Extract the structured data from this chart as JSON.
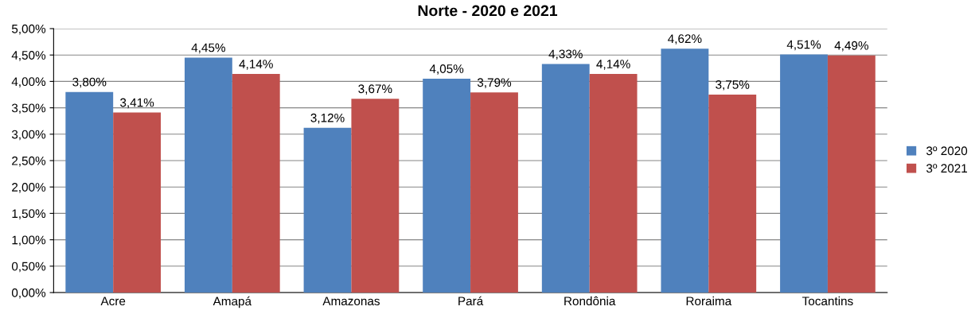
{
  "chart_data": {
    "type": "bar",
    "title": "Norte - 2020 e 2021",
    "categories": [
      "Acre",
      "Amapá",
      "Amazonas",
      "Pará",
      "Rondônia",
      "Roraima",
      "Tocantins"
    ],
    "series": [
      {
        "name": "3º 2020",
        "color": "#4f81bd",
        "values": [
          3.8,
          4.45,
          3.12,
          4.05,
          4.33,
          4.62,
          4.51
        ],
        "value_labels": [
          "3,80%",
          "4,45%",
          "3,12%",
          "4,05%",
          "4,33%",
          "4,62%",
          "4,51%"
        ]
      },
      {
        "name": "3º 2021",
        "color": "#c0504d",
        "values": [
          3.41,
          4.14,
          3.67,
          3.79,
          4.14,
          3.75,
          4.49
        ],
        "value_labels": [
          "3,41%",
          "4,14%",
          "3,67%",
          "3,79%",
          "4,14%",
          "3,75%",
          "4,49%"
        ]
      }
    ],
    "ylim": [
      0,
      5
    ],
    "yticks": [
      {
        "value": 0,
        "label": "0,00%"
      },
      {
        "value": 0.5,
        "label": "0,50%"
      },
      {
        "value": 1,
        "label": "1,00%"
      },
      {
        "value": 1.5,
        "label": "1,50%"
      },
      {
        "value": 2,
        "label": "2,00%"
      },
      {
        "value": 2.5,
        "label": "2,50%"
      },
      {
        "value": 3,
        "label": "3,00%"
      },
      {
        "value": 3.5,
        "label": "3,50%"
      },
      {
        "value": 4,
        "label": "4,00%"
      },
      {
        "value": 4.5,
        "label": "4,50%"
      },
      {
        "value": 5,
        "label": "5,00%"
      }
    ],
    "grid": "y",
    "legend": "right"
  }
}
